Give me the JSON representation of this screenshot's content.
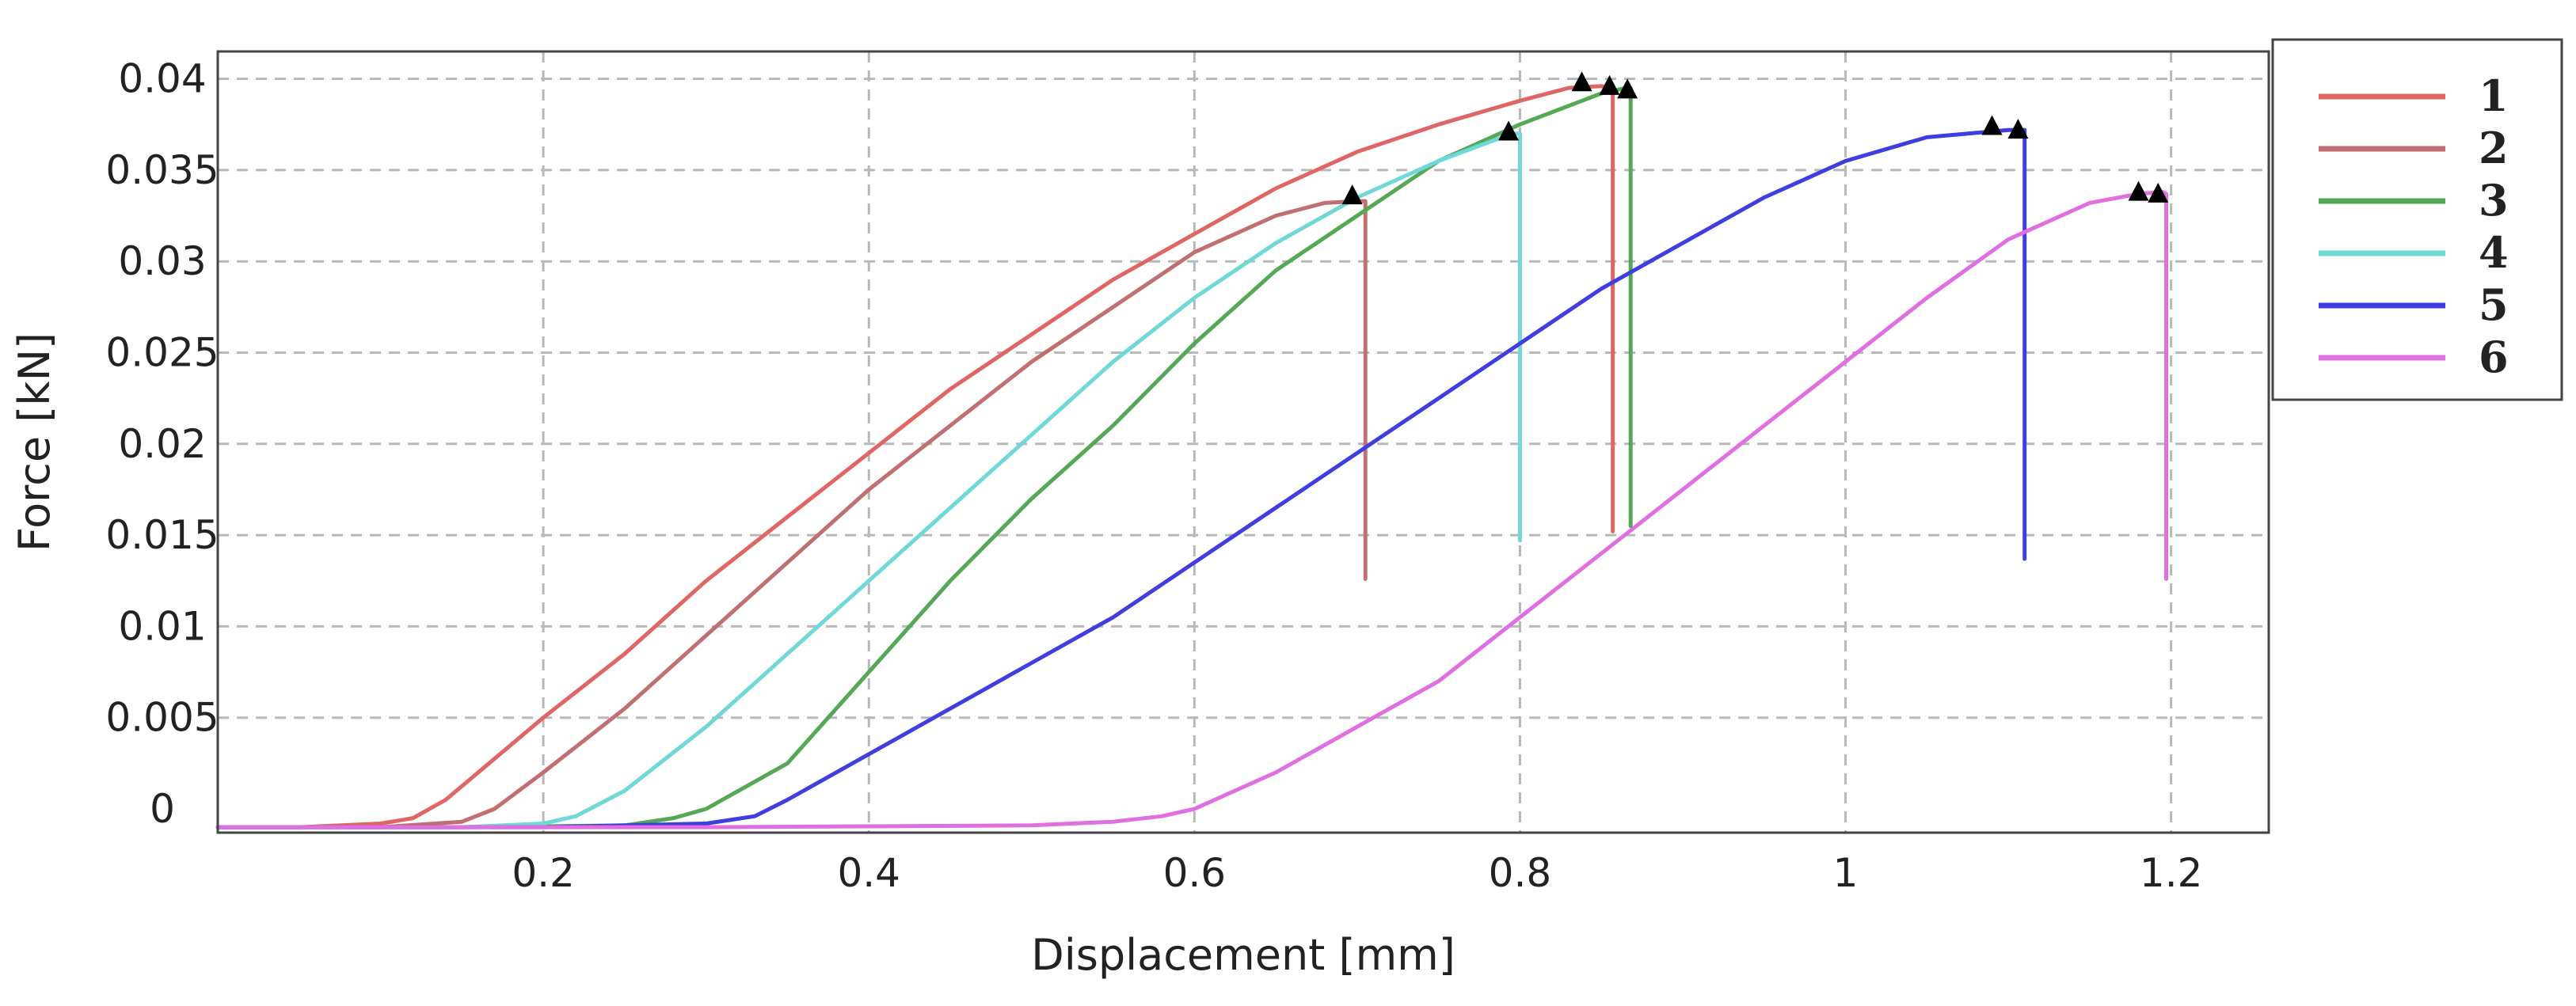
{
  "chart_data": {
    "type": "line",
    "title": "",
    "xlabel": "Displacement [mm]",
    "ylabel": "Force [kN]",
    "xlim": [
      0,
      1.26
    ],
    "ylim": [
      -0.0013,
      0.0415
    ],
    "grid": true,
    "legend_position": "top-right (outside plot)",
    "x_ticks": [
      {
        "value": 0.2,
        "label": "0.2"
      },
      {
        "value": 0.4,
        "label": "0.4"
      },
      {
        "value": 0.6,
        "label": "0.6"
      },
      {
        "value": 0.8,
        "label": "0.8"
      },
      {
        "value": 1.0,
        "label": "1"
      },
      {
        "value": 1.2,
        "label": "1.2"
      }
    ],
    "y_ticks": [
      {
        "value": 0,
        "label": "0"
      },
      {
        "value": 0.005,
        "label": "0.005"
      },
      {
        "value": 0.01,
        "label": "0.01"
      },
      {
        "value": 0.015,
        "label": "0.015"
      },
      {
        "value": 0.02,
        "label": "0.02"
      },
      {
        "value": 0.025,
        "label": "0.025"
      },
      {
        "value": 0.03,
        "label": "0.03"
      },
      {
        "value": 0.035,
        "label": "0.035"
      },
      {
        "value": 0.04,
        "label": "0.04"
      }
    ],
    "series": [
      {
        "name": "1",
        "color": "#e06666",
        "x": [
          0,
          0.05,
          0.1,
          0.12,
          0.14,
          0.16,
          0.18,
          0.2,
          0.25,
          0.3,
          0.35,
          0.4,
          0.45,
          0.5,
          0.55,
          0.6,
          0.65,
          0.7,
          0.75,
          0.8,
          0.83,
          0.85,
          0.857,
          0.857
        ],
        "y": [
          -0.001,
          -0.001,
          -0.0008,
          -0.0005,
          0.0005,
          0.002,
          0.0035,
          0.005,
          0.0085,
          0.0125,
          0.016,
          0.0195,
          0.023,
          0.026,
          0.029,
          0.0315,
          0.034,
          0.036,
          0.0375,
          0.0388,
          0.0395,
          0.0396,
          0.0395,
          0.0152
        ],
        "peak_markers": [
          {
            "x": 0.838,
            "y": 0.0398
          },
          {
            "x": 0.855,
            "y": 0.0396
          }
        ]
      },
      {
        "name": "2",
        "color": "#c07070",
        "x": [
          0,
          0.1,
          0.15,
          0.17,
          0.2,
          0.25,
          0.3,
          0.35,
          0.4,
          0.45,
          0.5,
          0.55,
          0.6,
          0.65,
          0.68,
          0.7,
          0.705,
          0.705
        ],
        "y": [
          -0.001,
          -0.001,
          -0.0007,
          0.0,
          0.002,
          0.0055,
          0.0095,
          0.0135,
          0.0175,
          0.021,
          0.0245,
          0.0275,
          0.0305,
          0.0325,
          0.0332,
          0.0333,
          0.0333,
          0.0126
        ],
        "peak_markers": [
          {
            "x": 0.697,
            "y": 0.0336
          }
        ]
      },
      {
        "name": "3",
        "color": "#55a855",
        "x": [
          0,
          0.15,
          0.25,
          0.28,
          0.3,
          0.35,
          0.4,
          0.45,
          0.5,
          0.55,
          0.6,
          0.65,
          0.7,
          0.75,
          0.8,
          0.85,
          0.865,
          0.868,
          0.868
        ],
        "y": [
          -0.001,
          -0.001,
          -0.0009,
          -0.0005,
          0.0,
          0.0025,
          0.0075,
          0.0125,
          0.017,
          0.021,
          0.0255,
          0.0295,
          0.0325,
          0.0355,
          0.0375,
          0.0392,
          0.0395,
          0.0395,
          0.0155
        ],
        "peak_markers": [
          {
            "x": 0.866,
            "y": 0.0394
          }
        ]
      },
      {
        "name": "4",
        "color": "#70d8d8",
        "x": [
          0,
          0.15,
          0.2,
          0.22,
          0.25,
          0.3,
          0.35,
          0.4,
          0.45,
          0.5,
          0.55,
          0.6,
          0.65,
          0.7,
          0.75,
          0.78,
          0.795,
          0.8,
          0.8
        ],
        "y": [
          -0.001,
          -0.001,
          -0.0008,
          -0.0004,
          0.001,
          0.0045,
          0.0085,
          0.0125,
          0.0165,
          0.0205,
          0.0245,
          0.028,
          0.031,
          0.0335,
          0.0355,
          0.0365,
          0.037,
          0.037,
          0.0147
        ],
        "peak_markers": [
          {
            "x": 0.793,
            "y": 0.0371
          }
        ]
      },
      {
        "name": "5",
        "color": "#3f3fe0",
        "x": [
          0,
          0.2,
          0.3,
          0.33,
          0.35,
          0.4,
          0.45,
          0.5,
          0.55,
          0.6,
          0.65,
          0.7,
          0.75,
          0.8,
          0.85,
          0.9,
          0.95,
          1.0,
          1.05,
          1.1,
          1.11,
          1.11
        ],
        "y": [
          -0.001,
          -0.001,
          -0.0008,
          -0.0004,
          0.0005,
          0.003,
          0.0055,
          0.008,
          0.0105,
          0.0135,
          0.0165,
          0.0195,
          0.0225,
          0.0255,
          0.0285,
          0.031,
          0.0335,
          0.0355,
          0.0368,
          0.0372,
          0.0372,
          0.0137
        ],
        "peak_markers": [
          {
            "x": 1.09,
            "y": 0.0374
          },
          {
            "x": 1.106,
            "y": 0.0372
          }
        ]
      },
      {
        "name": "6",
        "color": "#e070e0",
        "x": [
          0,
          0.3,
          0.5,
          0.55,
          0.58,
          0.6,
          0.65,
          0.7,
          0.75,
          0.8,
          0.85,
          0.9,
          0.95,
          1.0,
          1.05,
          1.1,
          1.15,
          1.18,
          1.195,
          1.197,
          1.197
        ],
        "y": [
          -0.001,
          -0.001,
          -0.0009,
          -0.0007,
          -0.0004,
          0.0,
          0.002,
          0.0045,
          0.007,
          0.0105,
          0.014,
          0.0175,
          0.021,
          0.0245,
          0.028,
          0.0312,
          0.0332,
          0.0337,
          0.0338,
          0.0337,
          0.0126
        ],
        "peak_markers": [
          {
            "x": 1.18,
            "y": 0.0338
          },
          {
            "x": 1.192,
            "y": 0.0337
          }
        ]
      }
    ]
  }
}
